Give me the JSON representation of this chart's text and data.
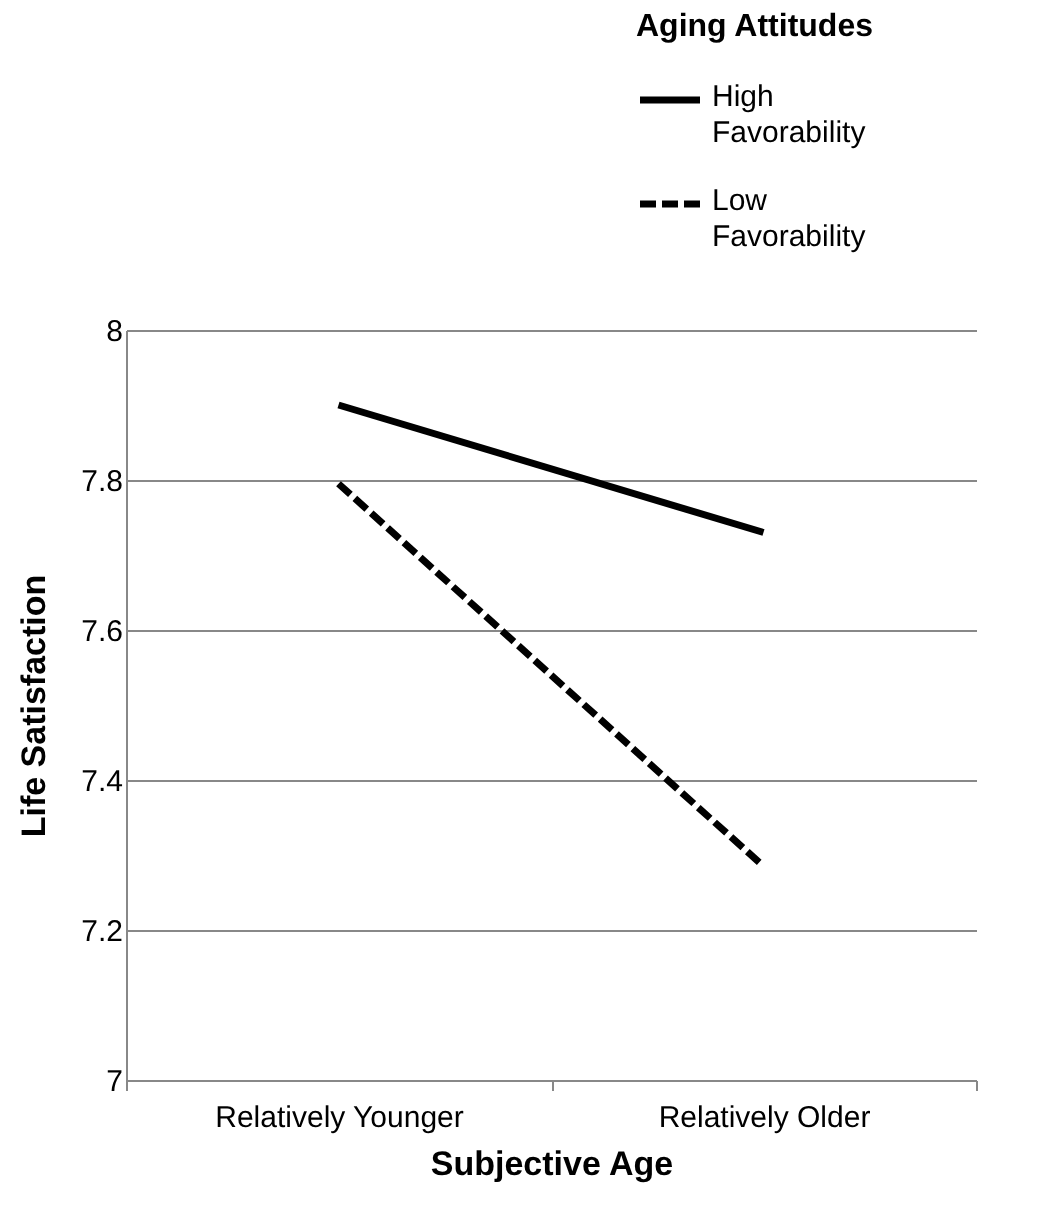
{
  "chart_data": {
    "type": "line",
    "xlabel": "Subjective Age",
    "ylabel": "Life Satisfaction",
    "legend_title": "Aging Attitudes",
    "categories": [
      "Relatively Younger",
      "Relatively Older"
    ],
    "series": [
      {
        "name": "High Favorability",
        "color": "#000000",
        "line_style": "solid",
        "values": [
          7.9,
          7.73
        ]
      },
      {
        "name": "Low Favorability",
        "color": "#000000",
        "line_style": "dashed",
        "values": [
          7.795,
          7.285
        ]
      }
    ],
    "ylim": [
      7,
      8
    ],
    "yticks": [
      7,
      7.2,
      7.4,
      7.6,
      7.8,
      8
    ],
    "grid": "y",
    "legend": "top right",
    "marker": "none"
  }
}
